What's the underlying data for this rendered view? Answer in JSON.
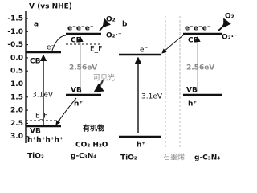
{
  "axis": {
    "title": "V (vs NHE)",
    "ticks": [
      "-1.5",
      "-1.0",
      "-0.5",
      "0.0",
      "0.5",
      "1.0",
      "1.5",
      "2.0",
      "2.5",
      "3.0"
    ]
  },
  "panel_a": {
    "label": "a",
    "tio2_name": "TiO₂",
    "tio2_cb": "CB",
    "tio2_vb": "VB",
    "tio2_e": "e⁻",
    "tio2_h": "h⁺h⁺h⁺h⁺",
    "tio2_gap": "3.1eV",
    "tio2_ef": "E_F",
    "gcn_name": "g-C₃N₄",
    "gcn_cb": "CB",
    "gcn_vb": "VB",
    "gcn_e": "e⁻e⁻e⁻",
    "gcn_h": "h⁺",
    "gcn_gap": "2.56eV",
    "gcn_ef": "E_F",
    "light": "可见光",
    "o2": "O₂",
    "o2_radical": "O₂·⁻",
    "organic": "有机物",
    "products": "CO₂ H₂O"
  },
  "panel_b": {
    "label": "b",
    "tio2_name": "TiO₂",
    "tio2_e": "e⁻",
    "tio2_h": "h⁺",
    "tio2_gap": "3.1eV",
    "graphene": "石墨烯",
    "gcn_name": "g-C₃N₄",
    "gcn_cb": "CB",
    "gcn_vb": "VB",
    "gcn_e": "e⁻e⁻e⁻",
    "gcn_h": "h⁺",
    "gcn_gap": "2.56eV",
    "o2": "O₂",
    "o2_radical": "O₂·⁻"
  }
}
